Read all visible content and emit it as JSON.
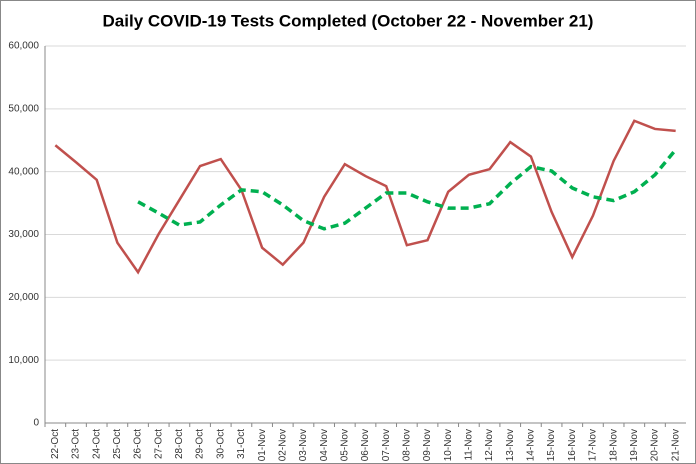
{
  "chart_data": {
    "type": "line",
    "title": "Daily COVID-19 Tests Completed (October 22 - November 21)",
    "categories": [
      "22-Oct",
      "23-Oct",
      "24-Oct",
      "25-Oct",
      "26-Oct",
      "27-Oct",
      "28-Oct",
      "29-Oct",
      "30-Oct",
      "31-Oct",
      "01-Nov",
      "02-Nov",
      "03-Nov",
      "04-Nov",
      "05-Nov",
      "06-Nov",
      "07-Nov",
      "08-Nov",
      "09-Nov",
      "10-Nov",
      "11-Nov",
      "12-Nov",
      "13-Nov",
      "14-Nov",
      "15-Nov",
      "16-Nov",
      "17-Nov",
      "18-Nov",
      "19-Nov",
      "20-Nov",
      "21-Nov"
    ],
    "series": [
      {
        "color": "#c0504d",
        "dashed": false,
        "values": [
          44200,
          41500,
          38700,
          28700,
          24000,
          30100,
          35500,
          40900,
          42000,
          37100,
          27900,
          25200,
          28700,
          36000,
          41200,
          39300,
          37700,
          28300,
          29100,
          36800,
          39500,
          40400,
          44700,
          42400,
          33600,
          26400,
          33000,
          41700,
          48100,
          46800,
          46500
        ]
      },
      {
        "color": "#00b050",
        "dashed": true,
        "values": [
          null,
          null,
          null,
          null,
          35200,
          33400,
          31500,
          32000,
          34700,
          37100,
          36800,
          34700,
          32200,
          30900,
          31800,
          34200,
          36600,
          36600,
          35200,
          34200,
          34200,
          34900,
          38100,
          40800,
          40100,
          37400,
          36000,
          35400,
          36800,
          39500,
          43500
        ]
      }
    ],
    "ylim": [
      0,
      60000
    ],
    "yticks": [
      0,
      {
        "value": 10000,
        "label": "10,000"
      },
      {
        "value": 20000,
        "label": "20,000"
      },
      {
        "value": 30000,
        "label": "30,000"
      },
      {
        "value": 40000,
        "label": "40,000"
      },
      {
        "value": 50000,
        "label": "50,000"
      },
      {
        "value": 60000,
        "label": "60,000"
      }
    ],
    "grid": true
  }
}
